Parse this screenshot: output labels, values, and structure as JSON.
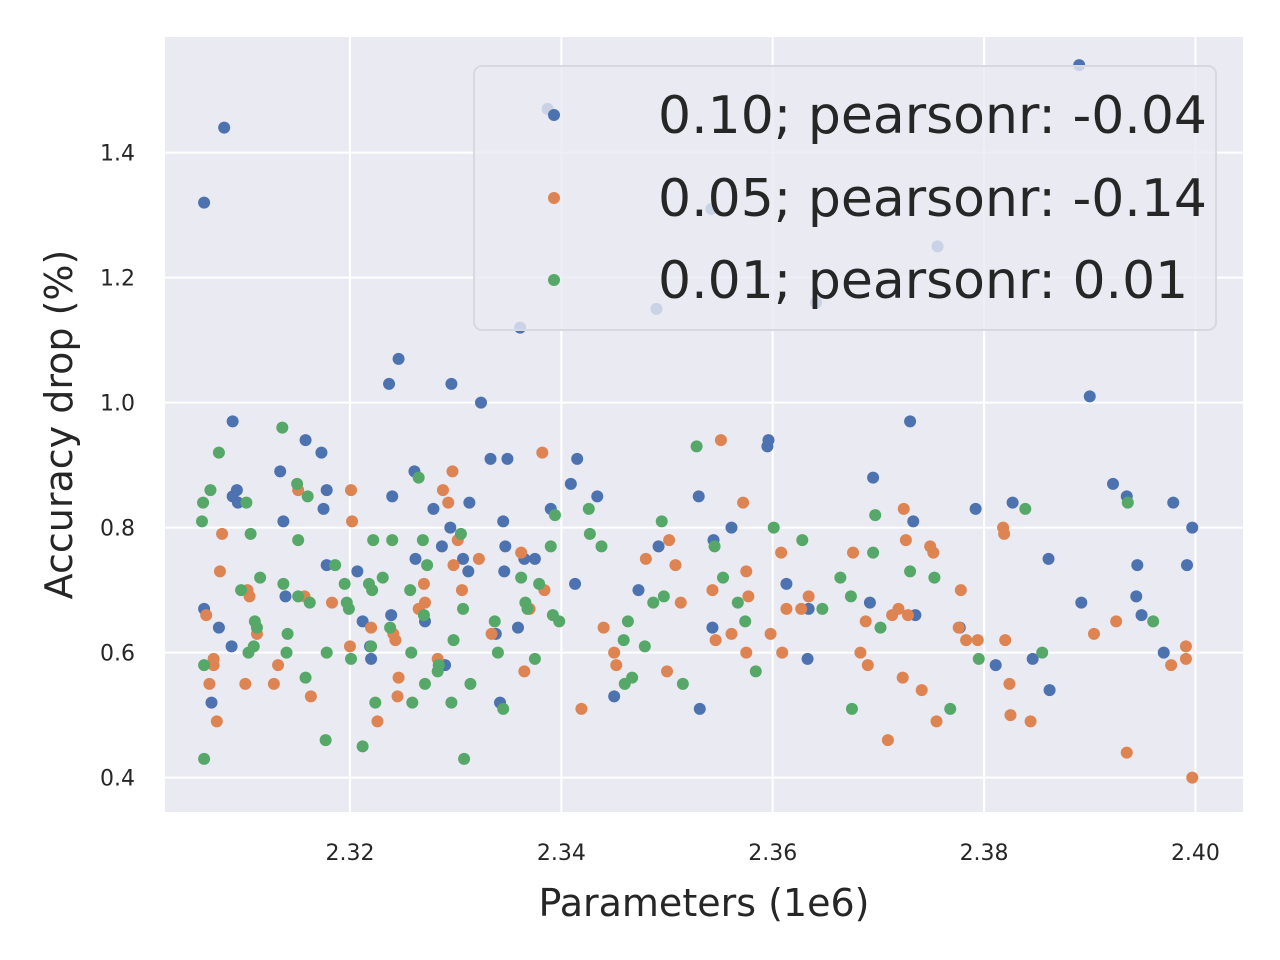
{
  "chart_data": {
    "type": "scatter",
    "xlabel": "Parameters (1e6)",
    "ylabel": "Accuracy drop (%)",
    "xlim": [
      2.3025,
      2.4045
    ],
    "ylim": [
      0.345,
      1.585
    ],
    "x_ticks": [
      2.32,
      2.34,
      2.36,
      2.38,
      2.4
    ],
    "x_tick_labels": [
      "2.32",
      "2.34",
      "2.36",
      "2.38",
      "2.40"
    ],
    "y_ticks": [
      0.4,
      0.6,
      0.8,
      1.0,
      1.2,
      1.4
    ],
    "y_tick_labels": [
      "0.4",
      "0.6",
      "0.8",
      "1.0",
      "1.2",
      "1.4"
    ],
    "grid": true,
    "background": "#EAEAF2",
    "legend_position": "top-right",
    "series": [
      {
        "name": "0.10; pearsonr: -0.04",
        "color": "#4C72B0",
        "points": [
          [
            2.3062,
            1.32
          ],
          [
            2.3081,
            1.44
          ],
          [
            2.3069,
            0.52
          ],
          [
            2.3062,
            0.67
          ],
          [
            2.3076,
            0.64
          ],
          [
            2.3088,
            0.61
          ],
          [
            2.3089,
            0.97
          ],
          [
            2.3093,
            0.86
          ],
          [
            2.3094,
            0.84
          ],
          [
            2.3089,
            0.85
          ],
          [
            2.3134,
            0.89
          ],
          [
            2.3137,
            0.81
          ],
          [
            2.3139,
            0.69
          ],
          [
            2.3158,
            0.94
          ],
          [
            2.3173,
            0.92
          ],
          [
            2.3178,
            0.86
          ],
          [
            2.3175,
            0.83
          ],
          [
            2.3178,
            0.74
          ],
          [
            2.3207,
            0.73
          ],
          [
            2.3212,
            0.65
          ],
          [
            2.3219,
            0.61
          ],
          [
            2.322,
            0.59
          ],
          [
            2.324,
            0.85
          ],
          [
            2.3239,
            0.66
          ],
          [
            2.3237,
            1.03
          ],
          [
            2.3246,
            1.07
          ],
          [
            2.3261,
            0.89
          ],
          [
            2.3262,
            0.75
          ],
          [
            2.3271,
            0.65
          ],
          [
            2.3279,
            0.83
          ],
          [
            2.3287,
            0.77
          ],
          [
            2.3296,
            1.03
          ],
          [
            2.329,
            0.58
          ],
          [
            2.3295,
            0.8
          ],
          [
            2.3307,
            0.75
          ],
          [
            2.3312,
            0.73
          ],
          [
            2.3313,
            0.84
          ],
          [
            2.3324,
            1.0
          ],
          [
            2.3333,
            0.91
          ],
          [
            2.3345,
            0.81
          ],
          [
            2.3349,
            0.91
          ],
          [
            2.3347,
            0.77
          ],
          [
            2.3346,
            0.73
          ],
          [
            2.3342,
            0.52
          ],
          [
            2.3338,
            0.63
          ],
          [
            2.3359,
            0.64
          ],
          [
            2.3361,
            1.12
          ],
          [
            2.3365,
            0.75
          ],
          [
            2.3375,
            0.75
          ],
          [
            2.3387,
            1.47
          ],
          [
            2.339,
            0.83
          ],
          [
            2.3415,
            0.91
          ],
          [
            2.3413,
            0.71
          ],
          [
            2.3409,
            0.87
          ],
          [
            2.3434,
            0.85
          ],
          [
            2.345,
            0.53
          ],
          [
            2.3473,
            0.7
          ],
          [
            2.349,
            1.15
          ],
          [
            2.3492,
            0.77
          ],
          [
            2.353,
            0.85
          ],
          [
            2.3531,
            0.51
          ],
          [
            2.3542,
            1.31
          ],
          [
            2.3544,
            0.78
          ],
          [
            2.3543,
            0.64
          ],
          [
            2.3561,
            0.8
          ],
          [
            2.3595,
            0.93
          ],
          [
            2.3596,
            0.94
          ],
          [
            2.3613,
            0.71
          ],
          [
            2.3634,
            0.67
          ],
          [
            2.3633,
            0.59
          ],
          [
            2.3641,
            1.16
          ],
          [
            2.3695,
            0.88
          ],
          [
            2.3692,
            0.68
          ],
          [
            2.373,
            0.97
          ],
          [
            2.3733,
            0.81
          ],
          [
            2.3735,
            0.66
          ],
          [
            2.3756,
            1.25
          ],
          [
            2.3777,
            0.64
          ],
          [
            2.3792,
            0.83
          ],
          [
            2.3811,
            0.58
          ],
          [
            2.3827,
            0.84
          ],
          [
            2.3846,
            0.59
          ],
          [
            2.3862,
            0.54
          ],
          [
            2.3861,
            0.75
          ],
          [
            2.389,
            1.54
          ],
          [
            2.3892,
            0.68
          ],
          [
            2.39,
            1.01
          ],
          [
            2.3922,
            0.87
          ],
          [
            2.3935,
            0.85
          ],
          [
            2.3945,
            0.74
          ],
          [
            2.3944,
            0.69
          ],
          [
            2.3949,
            0.66
          ],
          [
            2.397,
            0.6
          ],
          [
            2.3979,
            0.84
          ],
          [
            2.3992,
            0.74
          ],
          [
            2.3997,
            0.8
          ]
        ]
      },
      {
        "name": "0.05; pearsonr: -0.14",
        "color": "#DD8452",
        "points": [
          [
            2.3071,
            0.58
          ],
          [
            2.3064,
            0.66
          ],
          [
            2.3067,
            0.55
          ],
          [
            2.3074,
            0.49
          ],
          [
            2.3077,
            0.73
          ],
          [
            2.3079,
            0.79
          ],
          [
            2.3071,
            0.59
          ],
          [
            2.3101,
            0.55
          ],
          [
            2.3103,
            0.7
          ],
          [
            2.3105,
            0.69
          ],
          [
            2.3112,
            0.63
          ],
          [
            2.3128,
            0.55
          ],
          [
            2.3132,
            0.58
          ],
          [
            2.3151,
            0.86
          ],
          [
            2.3157,
            0.69
          ],
          [
            2.3163,
            0.53
          ],
          [
            2.3183,
            0.68
          ],
          [
            2.3201,
            0.86
          ],
          [
            2.3202,
            0.81
          ],
          [
            2.32,
            0.61
          ],
          [
            2.322,
            0.64
          ],
          [
            2.3226,
            0.49
          ],
          [
            2.3241,
            0.63
          ],
          [
            2.3243,
            0.62
          ],
          [
            2.3246,
            0.56
          ],
          [
            2.3245,
            0.53
          ],
          [
            2.3265,
            0.67
          ],
          [
            2.327,
            0.71
          ],
          [
            2.3271,
            0.68
          ],
          [
            2.3283,
            0.59
          ],
          [
            2.3288,
            0.86
          ],
          [
            2.3293,
            0.84
          ],
          [
            2.3297,
            0.89
          ],
          [
            2.3298,
            0.74
          ],
          [
            2.3302,
            0.78
          ],
          [
            2.3306,
            0.7
          ],
          [
            2.3322,
            0.75
          ],
          [
            2.3334,
            0.63
          ],
          [
            2.3362,
            0.76
          ],
          [
            2.3365,
            0.57
          ],
          [
            2.337,
            0.67
          ],
          [
            2.3382,
            0.92
          ],
          [
            2.3384,
            0.7
          ],
          [
            2.3419,
            0.51
          ],
          [
            2.344,
            0.64
          ],
          [
            2.345,
            0.6
          ],
          [
            2.3452,
            0.58
          ],
          [
            2.348,
            0.75
          ],
          [
            2.35,
            0.57
          ],
          [
            2.3502,
            0.78
          ],
          [
            2.3508,
            0.74
          ],
          [
            2.3513,
            0.68
          ],
          [
            2.3543,
            0.7
          ],
          [
            2.3546,
            0.62
          ],
          [
            2.3551,
            0.94
          ],
          [
            2.3561,
            0.63
          ],
          [
            2.3572,
            0.84
          ],
          [
            2.3575,
            0.6
          ],
          [
            2.3575,
            0.73
          ],
          [
            2.3577,
            0.69
          ],
          [
            2.3598,
            0.63
          ],
          [
            2.3608,
            0.76
          ],
          [
            2.3609,
            0.6
          ],
          [
            2.3613,
            0.67
          ],
          [
            2.3627,
            0.67
          ],
          [
            2.3634,
            0.69
          ],
          [
            2.3676,
            0.76
          ],
          [
            2.3683,
            0.6
          ],
          [
            2.3688,
            0.65
          ],
          [
            2.369,
            0.58
          ],
          [
            2.3709,
            0.46
          ],
          [
            2.3713,
            0.66
          ],
          [
            2.3719,
            0.67
          ],
          [
            2.3723,
            0.56
          ],
          [
            2.3724,
            0.83
          ],
          [
            2.3726,
            0.78
          ],
          [
            2.3728,
            0.66
          ],
          [
            2.3741,
            0.54
          ],
          [
            2.3749,
            0.77
          ],
          [
            2.3752,
            0.76
          ],
          [
            2.3755,
            0.49
          ],
          [
            2.3776,
            0.64
          ],
          [
            2.3778,
            0.7
          ],
          [
            2.3783,
            0.62
          ],
          [
            2.3794,
            0.62
          ],
          [
            2.3818,
            0.8
          ],
          [
            2.3819,
            0.79
          ],
          [
            2.382,
            0.62
          ],
          [
            2.3824,
            0.55
          ],
          [
            2.3825,
            0.5
          ],
          [
            2.3844,
            0.49
          ],
          [
            2.3904,
            0.63
          ],
          [
            2.3925,
            0.65
          ],
          [
            2.3935,
            0.44
          ],
          [
            2.3977,
            0.58
          ],
          [
            2.3991,
            0.61
          ],
          [
            2.3991,
            0.59
          ],
          [
            2.3997,
            0.4
          ]
        ]
      },
      {
        "name": "0.01; pearsonr: 0.01",
        "color": "#55A868",
        "points": [
          [
            2.306,
            0.81
          ],
          [
            2.3061,
            0.84
          ],
          [
            2.3062,
            0.58
          ],
          [
            2.3062,
            0.43
          ],
          [
            2.3068,
            0.86
          ],
          [
            2.3076,
            0.92
          ],
          [
            2.3097,
            0.7
          ],
          [
            2.3102,
            0.84
          ],
          [
            2.3104,
            0.6
          ],
          [
            2.3106,
            0.79
          ],
          [
            2.3109,
            0.61
          ],
          [
            2.311,
            0.65
          ],
          [
            2.3112,
            0.64
          ],
          [
            2.3115,
            0.72
          ],
          [
            2.3136,
            0.96
          ],
          [
            2.3137,
            0.71
          ],
          [
            2.314,
            0.6
          ],
          [
            2.3141,
            0.63
          ],
          [
            2.315,
            0.87
          ],
          [
            2.3151,
            0.78
          ],
          [
            2.3151,
            0.69
          ],
          [
            2.3158,
            0.56
          ],
          [
            2.316,
            0.85
          ],
          [
            2.3162,
            0.68
          ],
          [
            2.3177,
            0.46
          ],
          [
            2.3178,
            0.6
          ],
          [
            2.3186,
            0.74
          ],
          [
            2.3195,
            0.71
          ],
          [
            2.3197,
            0.68
          ],
          [
            2.3199,
            0.67
          ],
          [
            2.3201,
            0.59
          ],
          [
            2.3212,
            0.45
          ],
          [
            2.3218,
            0.71
          ],
          [
            2.322,
            0.61
          ],
          [
            2.3221,
            0.7
          ],
          [
            2.3222,
            0.78
          ],
          [
            2.3224,
            0.52
          ],
          [
            2.3231,
            0.72
          ],
          [
            2.3238,
            0.64
          ],
          [
            2.324,
            0.78
          ],
          [
            2.3257,
            0.7
          ],
          [
            2.3258,
            0.6
          ],
          [
            2.3259,
            0.52
          ],
          [
            2.3265,
            0.88
          ],
          [
            2.3269,
            0.78
          ],
          [
            2.327,
            0.66
          ],
          [
            2.3271,
            0.55
          ],
          [
            2.3273,
            0.74
          ],
          [
            2.3283,
            0.57
          ],
          [
            2.3284,
            0.58
          ],
          [
            2.3296,
            0.52
          ],
          [
            2.3298,
            0.62
          ],
          [
            2.3305,
            0.79
          ],
          [
            2.3307,
            0.67
          ],
          [
            2.3308,
            0.43
          ],
          [
            2.3314,
            0.55
          ],
          [
            2.3337,
            0.65
          ],
          [
            2.334,
            0.6
          ],
          [
            2.3345,
            0.51
          ],
          [
            2.3362,
            0.72
          ],
          [
            2.3366,
            0.68
          ],
          [
            2.3368,
            0.67
          ],
          [
            2.3375,
            0.59
          ],
          [
            2.3379,
            0.71
          ],
          [
            2.339,
            0.77
          ],
          [
            2.3392,
            0.66
          ],
          [
            2.3394,
            0.82
          ],
          [
            2.3398,
            0.65
          ],
          [
            2.3426,
            0.83
          ],
          [
            2.3427,
            0.79
          ],
          [
            2.3438,
            0.77
          ],
          [
            2.3459,
            0.62
          ],
          [
            2.346,
            0.55
          ],
          [
            2.3463,
            0.65
          ],
          [
            2.3467,
            0.56
          ],
          [
            2.3479,
            0.61
          ],
          [
            2.3487,
            0.68
          ],
          [
            2.3495,
            0.81
          ],
          [
            2.3497,
            0.69
          ],
          [
            2.3515,
            0.55
          ],
          [
            2.3528,
            0.93
          ],
          [
            2.3545,
            0.77
          ],
          [
            2.3553,
            0.72
          ],
          [
            2.3567,
            0.68
          ],
          [
            2.3574,
            0.65
          ],
          [
            2.3584,
            0.57
          ],
          [
            2.3601,
            0.8
          ],
          [
            2.3628,
            0.78
          ],
          [
            2.3647,
            0.67
          ],
          [
            2.3664,
            0.72
          ],
          [
            2.3674,
            0.69
          ],
          [
            2.3675,
            0.51
          ],
          [
            2.3695,
            0.76
          ],
          [
            2.3697,
            0.82
          ],
          [
            2.3702,
            0.64
          ],
          [
            2.373,
            0.73
          ],
          [
            2.3753,
            0.72
          ],
          [
            2.3768,
            0.51
          ],
          [
            2.3795,
            0.59
          ],
          [
            2.3839,
            0.83
          ],
          [
            2.3855,
            0.6
          ],
          [
            2.3936,
            0.84
          ],
          [
            2.396,
            0.65
          ]
        ]
      }
    ]
  }
}
